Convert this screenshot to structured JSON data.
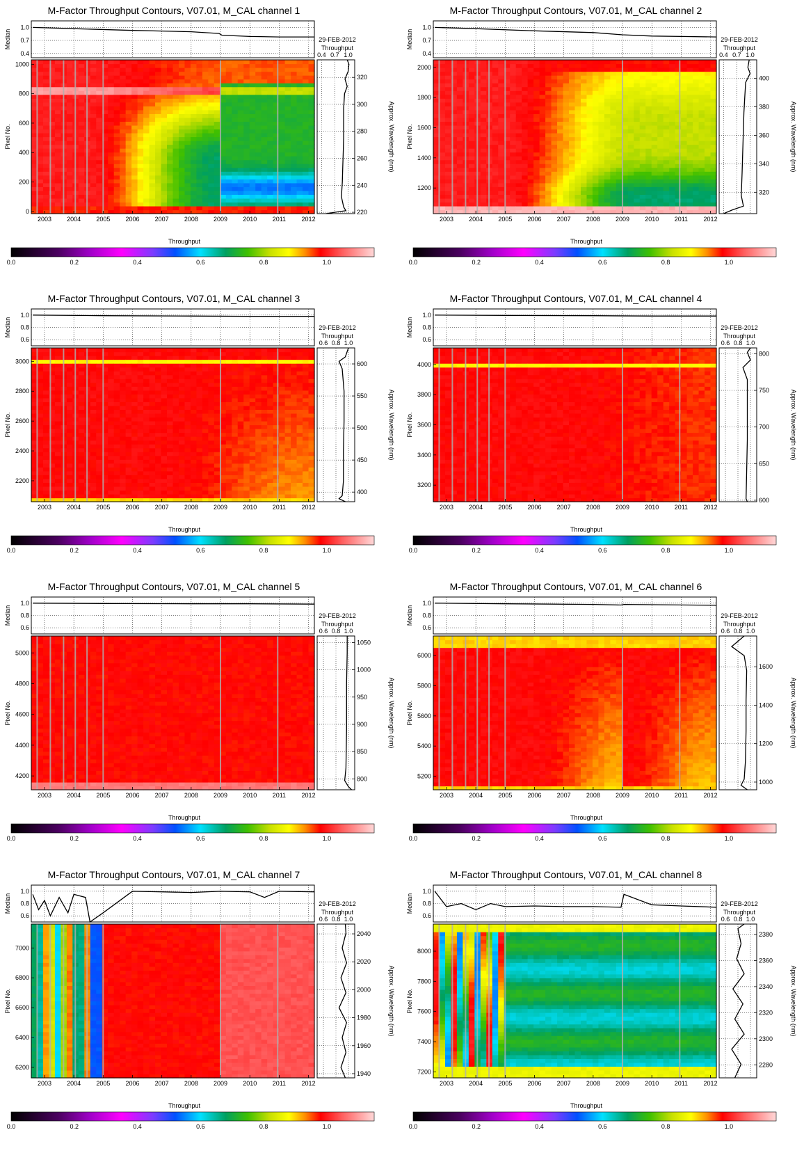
{
  "colorbar": {
    "label": "Throughput",
    "ticks": [
      "0.0",
      "0.2",
      "0.4",
      "0.6",
      "0.8",
      "1.0"
    ],
    "tick_values": [
      0.0,
      0.2,
      0.4,
      0.6,
      0.8,
      1.0
    ],
    "range": [
      0.0,
      1.15
    ],
    "stops": [
      [
        0.0,
        "#000000"
      ],
      [
        0.15,
        "#4b0060"
      ],
      [
        0.25,
        "#a000c8"
      ],
      [
        0.35,
        "#ff00ff"
      ],
      [
        0.45,
        "#7a3cff"
      ],
      [
        0.52,
        "#0050ff"
      ],
      [
        0.6,
        "#00e0ff"
      ],
      [
        0.68,
        "#00a060"
      ],
      [
        0.75,
        "#40c000"
      ],
      [
        0.82,
        "#c8e000"
      ],
      [
        0.88,
        "#ffff00"
      ],
      [
        0.93,
        "#ff9000"
      ],
      [
        0.98,
        "#ff0000"
      ],
      [
        1.05,
        "#ff6060"
      ],
      [
        1.15,
        "#ffd8d8"
      ]
    ]
  },
  "chart_data": [
    {
      "type": "heatmap",
      "title": "M-Factor Throughput Contours, V07.01, M_CAL channel 1",
      "xlabel": "",
      "ylabel": "Pixel No.",
      "y2label": "Approx. Wavelength (nm)",
      "top_ylabel": "Median",
      "side_title": [
        "29-FEB-2012",
        "Throughput"
      ],
      "x_ticks": [
        2003,
        2004,
        2005,
        2006,
        2007,
        2008,
        2009,
        2010,
        2011,
        2012
      ],
      "xlim": [
        2002.55,
        2012.2
      ],
      "pixel_ticks": [
        0,
        200,
        400,
        600,
        800,
        1000
      ],
      "ylim": [
        -15,
        1030
      ],
      "wavelength_ticks": [
        220,
        240,
        260,
        280,
        300,
        320
      ],
      "wavelength_range": [
        219,
        333
      ],
      "median_ticks": [
        "0.4",
        "0.7",
        "1.0"
      ],
      "median_range": [
        0.3,
        1.15
      ],
      "side_ticks": [
        "0.4",
        "0.7",
        "1.0"
      ],
      "side_range": [
        0.3,
        1.15
      ],
      "median_series": {
        "x": [
          2002.6,
          2004,
          2006,
          2008,
          2008.95,
          2009.05,
          2010,
          2011,
          2012.2
        ],
        "y": [
          1.0,
          0.97,
          0.93,
          0.9,
          0.86,
          0.82,
          0.79,
          0.78,
          0.78
        ]
      },
      "side_profile": {
        "pixel": [
          -15,
          5,
          30,
          100,
          200,
          300,
          400,
          500,
          600,
          700,
          800,
          850,
          900,
          950,
          1000,
          1030
        ],
        "value": [
          0.5,
          0.95,
          0.9,
          0.85,
          0.87,
          0.88,
          0.89,
          0.9,
          0.9,
          0.9,
          0.92,
          0.98,
          0.93,
          1.0,
          1.02,
          0.98
        ]
      }
    },
    {
      "type": "heatmap",
      "title": "M-Factor Throughput Contours, V07.01, M_CAL channel 2",
      "xlabel": "",
      "ylabel": "Pixel No.",
      "y2label": "Approx. Wavelength (nm)",
      "top_ylabel": "Median",
      "side_title": [
        "29-FEB-2012",
        "Throughput"
      ],
      "x_ticks": [
        2003,
        2004,
        2005,
        2006,
        2007,
        2008,
        2009,
        2010,
        2011,
        2012
      ],
      "xlim": [
        2002.55,
        2012.2
      ],
      "pixel_ticks": [
        1200,
        1400,
        1600,
        1800,
        2000
      ],
      "ylim": [
        1030,
        2050
      ],
      "wavelength_ticks": [
        320,
        340,
        360,
        380,
        400
      ],
      "wavelength_range": [
        305,
        413
      ],
      "median_ticks": [
        "0.4",
        "0.7",
        "1.0"
      ],
      "median_range": [
        0.3,
        1.15
      ],
      "side_ticks": [
        "0.4",
        "0.7",
        "1.0"
      ],
      "side_range": [
        0.3,
        1.15
      ],
      "median_series": {
        "x": [
          2002.6,
          2004,
          2006,
          2008,
          2009,
          2010,
          2011,
          2012.2
        ],
        "y": [
          1.0,
          0.97,
          0.92,
          0.88,
          0.83,
          0.8,
          0.79,
          0.78
        ]
      },
      "side_profile": {
        "pixel": [
          1030,
          1055,
          1080,
          1150,
          1300,
          1500,
          1700,
          1800,
          1900,
          1960,
          2000,
          2050
        ],
        "value": [
          0.4,
          0.6,
          0.85,
          0.8,
          0.82,
          0.84,
          0.86,
          0.88,
          0.9,
          1.0,
          0.95,
          0.98
        ]
      }
    },
    {
      "type": "heatmap",
      "title": "M-Factor Throughput Contours, V07.01, M_CAL channel 3",
      "xlabel": "",
      "ylabel": "Pixel No.",
      "y2label": "Approx. Wavelength (nm)",
      "top_ylabel": "Median",
      "side_title": [
        "29-FEB-2012",
        "Throughput"
      ],
      "x_ticks": [
        2003,
        2004,
        2005,
        2006,
        2007,
        2008,
        2009,
        2010,
        2011,
        2012
      ],
      "xlim": [
        2002.55,
        2012.2
      ],
      "pixel_ticks": [
        2200,
        2400,
        2600,
        2800,
        3000
      ],
      "ylim": [
        2060,
        3090
      ],
      "wavelength_ticks": [
        400,
        450,
        500,
        550,
        600
      ],
      "wavelength_range": [
        385,
        625
      ],
      "median_ticks": [
        "0.6",
        "0.8",
        "1.0"
      ],
      "median_range": [
        0.5,
        1.1
      ],
      "side_ticks": [
        "0.6",
        "0.8",
        "1.0"
      ],
      "side_range": [
        0.5,
        1.1
      ],
      "median_series": {
        "x": [
          2002.6,
          2005,
          2008,
          2010,
          2012.2
        ],
        "y": [
          1.0,
          0.99,
          0.985,
          0.98,
          0.98
        ]
      },
      "side_profile": {
        "pixel": [
          2060,
          2080,
          2100,
          2200,
          2400,
          2600,
          2800,
          2950,
          3000,
          3030,
          3090
        ],
        "value": [
          0.95,
          0.85,
          0.9,
          0.92,
          0.92,
          0.93,
          0.93,
          0.9,
          0.85,
          0.95,
          1.0
        ]
      }
    },
    {
      "type": "heatmap",
      "title": "M-Factor Throughput Contours, V07.01, M_CAL channel 4",
      "xlabel": "",
      "ylabel": "Pixel No.",
      "y2label": "Approx. Wavelength (nm)",
      "top_ylabel": "Median",
      "side_title": [
        "29-FEB-2012",
        "Throughput"
      ],
      "x_ticks": [
        2003,
        2004,
        2005,
        2006,
        2007,
        2008,
        2009,
        2010,
        2011,
        2012
      ],
      "xlim": [
        2002.55,
        2012.2
      ],
      "pixel_ticks": [
        3200,
        3400,
        3600,
        3800,
        4000
      ],
      "ylim": [
        3090,
        4110
      ],
      "wavelength_ticks": [
        600,
        650,
        700,
        750,
        800
      ],
      "wavelength_range": [
        598,
        808
      ],
      "median_ticks": [
        "0.6",
        "0.8",
        "1.0"
      ],
      "median_range": [
        0.5,
        1.1
      ],
      "side_ticks": [
        "0.6",
        "0.8",
        "1.0"
      ],
      "side_range": [
        0.5,
        1.1
      ],
      "median_series": {
        "x": [
          2002.6,
          2005,
          2008,
          2010,
          2012.2
        ],
        "y": [
          1.0,
          0.995,
          0.99,
          0.985,
          0.985
        ]
      },
      "side_profile": {
        "pixel": [
          3090,
          3110,
          3300,
          3500,
          3700,
          3900,
          3980,
          4030,
          4080,
          4110
        ],
        "value": [
          0.95,
          0.93,
          0.94,
          0.95,
          0.95,
          0.95,
          0.88,
          1.0,
          0.95,
          1.0
        ]
      }
    },
    {
      "type": "heatmap",
      "title": "M-Factor Throughput Contours, V07.01, M_CAL channel 5",
      "xlabel": "",
      "ylabel": "Pixel No.",
      "y2label": "Approx. Wavelength (nm)",
      "top_ylabel": "Median",
      "side_title": [
        "29-FEB-2012",
        "Throughput"
      ],
      "x_ticks": [
        2003,
        2004,
        2005,
        2006,
        2007,
        2008,
        2009,
        2010,
        2011,
        2012
      ],
      "xlim": [
        2002.55,
        2012.2
      ],
      "pixel_ticks": [
        4200,
        4400,
        4600,
        4800,
        5000
      ],
      "ylim": [
        4110,
        5110
      ],
      "wavelength_ticks": [
        800,
        850,
        900,
        950,
        1000,
        1050
      ],
      "wavelength_range": [
        780,
        1062
      ],
      "median_ticks": [
        "0.6",
        "0.8",
        "1.0"
      ],
      "median_range": [
        0.5,
        1.1
      ],
      "side_ticks": [
        "0.6",
        "0.8",
        "1.0"
      ],
      "side_range": [
        0.5,
        1.1
      ],
      "median_series": {
        "x": [
          2002.6,
          2005,
          2008,
          2010,
          2012.2
        ],
        "y": [
          1.0,
          0.995,
          0.99,
          0.99,
          0.985
        ]
      },
      "side_profile": {
        "pixel": [
          4110,
          4130,
          4170,
          4250,
          4500,
          4800,
          5000,
          5110
        ],
        "value": [
          1.05,
          1.0,
          0.94,
          0.96,
          0.97,
          0.97,
          0.98,
          0.98
        ]
      }
    },
    {
      "type": "heatmap",
      "title": "M-Factor Throughput Contours, V07.01, M_CAL channel 6",
      "xlabel": "",
      "ylabel": "Pixel No.",
      "y2label": "Approx. Wavelength (nm)",
      "top_ylabel": "Median",
      "side_title": [
        "29-FEB-2012",
        "Throughput"
      ],
      "x_ticks": [
        2003,
        2004,
        2005,
        2006,
        2007,
        2008,
        2009,
        2010,
        2011,
        2012
      ],
      "xlim": [
        2002.55,
        2012.2
      ],
      "pixel_ticks": [
        5200,
        5400,
        5600,
        5800,
        6000
      ],
      "ylim": [
        5110,
        6130
      ],
      "wavelength_ticks": [
        1000,
        1200,
        1400,
        1600
      ],
      "wavelength_range": [
        960,
        1760
      ],
      "median_ticks": [
        "0.6",
        "0.8",
        "1.0"
      ],
      "median_range": [
        0.5,
        1.1
      ],
      "side_ticks": [
        "0.6",
        "0.8",
        "1.0"
      ],
      "side_range": [
        0.5,
        1.1
      ],
      "median_series": {
        "x": [
          2002.6,
          2005,
          2008,
          2008.95,
          2009.05,
          2010,
          2012.2
        ],
        "y": [
          1.0,
          0.99,
          0.98,
          0.97,
          0.98,
          0.975,
          0.965
        ]
      },
      "side_profile": {
        "pixel": [
          5110,
          5140,
          5180,
          5300,
          5500,
          5700,
          5900,
          6000,
          6060,
          6130
        ],
        "value": [
          0.95,
          0.85,
          0.9,
          0.92,
          0.93,
          0.93,
          0.94,
          0.9,
          0.7,
          0.9
        ]
      }
    },
    {
      "type": "heatmap",
      "title": "M-Factor Throughput Contours, V07.01, M_CAL channel 7",
      "xlabel": "",
      "ylabel": "Pixel No.",
      "y2label": "Approx. Wavelength (nm)",
      "top_ylabel": "Median",
      "side_title": [
        "29-FEB-2012",
        "Throughput"
      ],
      "x_ticks": [
        2003,
        2004,
        2005,
        2006,
        2007,
        2008,
        2009,
        2010,
        2011,
        2012
      ],
      "xlim": [
        2002.55,
        2012.2
      ],
      "pixel_ticks": [
        6200,
        6400,
        6600,
        6800,
        7000
      ],
      "ylim": [
        6130,
        7160
      ],
      "wavelength_ticks": [
        1940,
        1960,
        1980,
        2000,
        2020,
        2040
      ],
      "wavelength_range": [
        1937,
        2047
      ],
      "median_ticks": [
        "0.6",
        "0.8",
        "1.0"
      ],
      "median_range": [
        0.5,
        1.1
      ],
      "side_ticks": [
        "0.6",
        "0.8",
        "1.0"
      ],
      "side_range": [
        0.5,
        1.1
      ],
      "median_series": {
        "x": [
          2002.6,
          2002.8,
          2003.0,
          2003.2,
          2003.5,
          2003.8,
          2004.0,
          2004.4,
          2004.55,
          2005.0,
          2006,
          2007,
          2008,
          2009,
          2010,
          2010.5,
          2011,
          2012.2
        ],
        "y": [
          0.95,
          0.7,
          0.85,
          0.6,
          0.9,
          0.65,
          0.95,
          0.9,
          0.5,
          0.65,
          1.0,
          0.99,
          0.98,
          1.0,
          0.99,
          0.9,
          1.0,
          0.99
        ]
      },
      "side_profile": {
        "pixel": [
          6130,
          6200,
          6300,
          6400,
          6500,
          6600,
          6700,
          6800,
          6900,
          7000,
          7100,
          7160
        ],
        "value": [
          0.95,
          0.88,
          0.96,
          0.9,
          0.97,
          0.85,
          0.96,
          0.88,
          0.97,
          0.9,
          0.96,
          0.95
        ]
      }
    },
    {
      "type": "heatmap",
      "title": "M-Factor Throughput Contours, V07.01, M_CAL channel 8",
      "xlabel": "",
      "ylabel": "Pixel No.",
      "y2label": "Approx. Wavelength (nm)",
      "top_ylabel": "Median",
      "side_title": [
        "29-FEB-2012",
        "Throughput"
      ],
      "x_ticks": [
        2003,
        2004,
        2005,
        2006,
        2007,
        2008,
        2009,
        2010,
        2011,
        2012
      ],
      "xlim": [
        2002.55,
        2012.2
      ],
      "pixel_ticks": [
        7200,
        7400,
        7600,
        7800,
        8000
      ],
      "ylim": [
        7160,
        8180
      ],
      "wavelength_ticks": [
        2280,
        2300,
        2320,
        2340,
        2360,
        2380
      ],
      "wavelength_range": [
        2270,
        2388
      ],
      "median_ticks": [
        "0.6",
        "0.8",
        "1.0"
      ],
      "median_range": [
        0.5,
        1.1
      ],
      "side_ticks": [
        "0.6",
        "0.8",
        "1.0"
      ],
      "side_range": [
        0.5,
        1.1
      ],
      "median_series": {
        "x": [
          2002.6,
          2003,
          2003.5,
          2004,
          2004.5,
          2005,
          2006,
          2007,
          2008,
          2008.95,
          2009.05,
          2010,
          2011,
          2012.2
        ],
        "y": [
          1.0,
          0.75,
          0.8,
          0.7,
          0.8,
          0.75,
          0.76,
          0.75,
          0.75,
          0.74,
          0.95,
          0.78,
          0.76,
          0.74
        ]
      },
      "side_profile": {
        "pixel": [
          7160,
          7250,
          7350,
          7450,
          7550,
          7650,
          7750,
          7850,
          7950,
          8050,
          8150,
          8180
        ],
        "value": [
          0.75,
          0.85,
          0.7,
          0.9,
          0.75,
          0.88,
          0.72,
          0.9,
          0.78,
          0.85,
          0.8,
          0.9
        ]
      }
    }
  ]
}
